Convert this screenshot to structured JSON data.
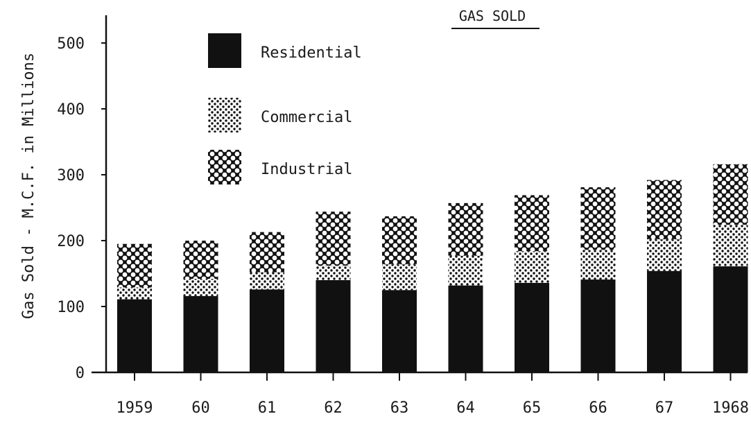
{
  "chart_data": {
    "type": "bar",
    "stacked": true,
    "title": "GAS SOLD",
    "ylabel": "Gas Sold - M.C.F. in Millions",
    "xlabel": "",
    "categories": [
      "1959",
      "60",
      "61",
      "62",
      "63",
      "64",
      "65",
      "66",
      "67",
      "1968"
    ],
    "ylim": [
      0,
      500
    ],
    "yticks": [
      0,
      100,
      200,
      300,
      400,
      500
    ],
    "series": [
      {
        "name": "Residential",
        "pattern": "solid",
        "values": [
          111,
          116,
          126,
          140,
          125,
          132,
          136,
          141,
          154,
          161
        ]
      },
      {
        "name": "Commercial",
        "pattern": "dots",
        "values": [
          18,
          26,
          26,
          22,
          39,
          45,
          48,
          45,
          48,
          63
        ]
      },
      {
        "name": "Industrial",
        "pattern": "crosshatch",
        "values": [
          66,
          58,
          61,
          82,
          73,
          80,
          85,
          95,
          90,
          92
        ]
      }
    ],
    "legend_position": "top-left",
    "grid": false,
    "colors": {
      "ink": "#111111",
      "background": "#ffffff"
    }
  }
}
